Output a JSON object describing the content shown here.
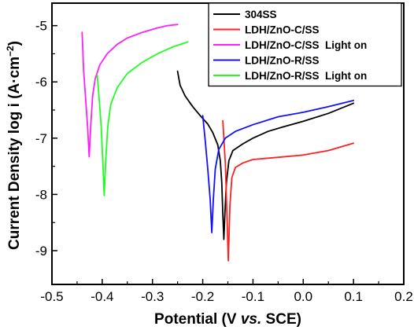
{
  "chart_data": {
    "type": "line",
    "xlabel_parts": [
      "Potential (V ",
      "vs.",
      " SCE)"
    ],
    "ylabel": "Current Density log i (A·cm",
    "ylabel_sup": "−2",
    "ylabel_close": ")",
    "xlim": [
      -0.5,
      0.2
    ],
    "ylim": [
      -9.6,
      -4.6
    ],
    "xticks": [
      -0.5,
      -0.4,
      -0.3,
      -0.2,
      -0.1,
      0.0,
      0.1,
      0.2
    ],
    "xtick_labels": [
      "-0.5",
      "-0.4",
      "-0.3",
      "-0.2",
      "-0.1",
      "0.0",
      "0.1",
      "0.2"
    ],
    "yticks": [
      -9,
      -8,
      -7,
      -6,
      -5
    ],
    "ytick_labels": [
      "-9",
      "-8",
      "-7",
      "-6",
      "-5"
    ],
    "legend_position": "top-right",
    "series": [
      {
        "name": "304SS",
        "color": "#000000",
        "points": [
          [
            -0.25,
            -5.81
          ],
          [
            -0.245,
            -6.06
          ],
          [
            -0.235,
            -6.25
          ],
          [
            -0.22,
            -6.44
          ],
          [
            -0.205,
            -6.6
          ],
          [
            -0.19,
            -6.75
          ],
          [
            -0.18,
            -6.9
          ],
          [
            -0.17,
            -7.12
          ],
          [
            -0.165,
            -7.4
          ],
          [
            -0.162,
            -7.8
          ],
          [
            -0.16,
            -8.35
          ],
          [
            -0.158,
            -8.8
          ],
          [
            -0.156,
            -8.35
          ],
          [
            -0.153,
            -7.8
          ],
          [
            -0.148,
            -7.4
          ],
          [
            -0.14,
            -7.22
          ],
          [
            -0.12,
            -7.1
          ],
          [
            -0.1,
            -7.0
          ],
          [
            -0.07,
            -6.88
          ],
          [
            -0.04,
            -6.8
          ],
          [
            0.0,
            -6.7
          ],
          [
            0.05,
            -6.56
          ],
          [
            0.1,
            -6.38
          ]
        ]
      },
      {
        "name": "LDH/ZnO-C/SS",
        "color": "#ff2020",
        "points": [
          [
            -0.16,
            -6.69
          ],
          [
            -0.155,
            -7.45
          ],
          [
            -0.152,
            -8.3
          ],
          [
            -0.149,
            -9.18
          ],
          [
            -0.146,
            -8.2
          ],
          [
            -0.142,
            -7.7
          ],
          [
            -0.135,
            -7.52
          ],
          [
            -0.12,
            -7.44
          ],
          [
            -0.1,
            -7.38
          ],
          [
            -0.05,
            -7.34
          ],
          [
            0.0,
            -7.3
          ],
          [
            0.05,
            -7.22
          ],
          [
            0.1,
            -7.09
          ]
        ]
      },
      {
        "name": "LDH/ZnO-C/SS  Light on",
        "color": "#ff1eff",
        "points": [
          [
            -0.44,
            -5.12
          ],
          [
            -0.437,
            -5.78
          ],
          [
            -0.433,
            -6.3
          ],
          [
            -0.429,
            -6.8
          ],
          [
            -0.426,
            -7.33
          ],
          [
            -0.423,
            -6.8
          ],
          [
            -0.419,
            -6.25
          ],
          [
            -0.414,
            -5.95
          ],
          [
            -0.405,
            -5.7
          ],
          [
            -0.39,
            -5.5
          ],
          [
            -0.37,
            -5.33
          ],
          [
            -0.35,
            -5.22
          ],
          [
            -0.32,
            -5.12
          ],
          [
            -0.29,
            -5.04
          ],
          [
            -0.27,
            -5.0
          ],
          [
            -0.25,
            -4.98
          ]
        ]
      },
      {
        "name": "LDH/ZnO-R/SS",
        "color": "#1010ff",
        "points": [
          [
            -0.2,
            -6.6
          ],
          [
            -0.195,
            -7.05
          ],
          [
            -0.19,
            -7.55
          ],
          [
            -0.185,
            -8.1
          ],
          [
            -0.182,
            -8.68
          ],
          [
            -0.179,
            -8.1
          ],
          [
            -0.175,
            -7.55
          ],
          [
            -0.168,
            -7.2
          ],
          [
            -0.155,
            -7.0
          ],
          [
            -0.135,
            -6.88
          ],
          [
            -0.1,
            -6.76
          ],
          [
            -0.05,
            -6.62
          ],
          [
            0.0,
            -6.54
          ],
          [
            0.05,
            -6.44
          ],
          [
            0.1,
            -6.33
          ]
        ]
      },
      {
        "name": "LDH/ZnO-R/SS  Light on",
        "color": "#1eff1e",
        "points": [
          [
            -0.41,
            -5.88
          ],
          [
            -0.406,
            -6.3
          ],
          [
            -0.402,
            -6.8
          ],
          [
            -0.399,
            -7.4
          ],
          [
            -0.396,
            -8.02
          ],
          [
            -0.393,
            -7.4
          ],
          [
            -0.389,
            -6.8
          ],
          [
            -0.383,
            -6.4
          ],
          [
            -0.37,
            -6.1
          ],
          [
            -0.35,
            -5.85
          ],
          [
            -0.32,
            -5.65
          ],
          [
            -0.29,
            -5.5
          ],
          [
            -0.26,
            -5.38
          ],
          [
            -0.23,
            -5.29
          ]
        ]
      }
    ]
  }
}
